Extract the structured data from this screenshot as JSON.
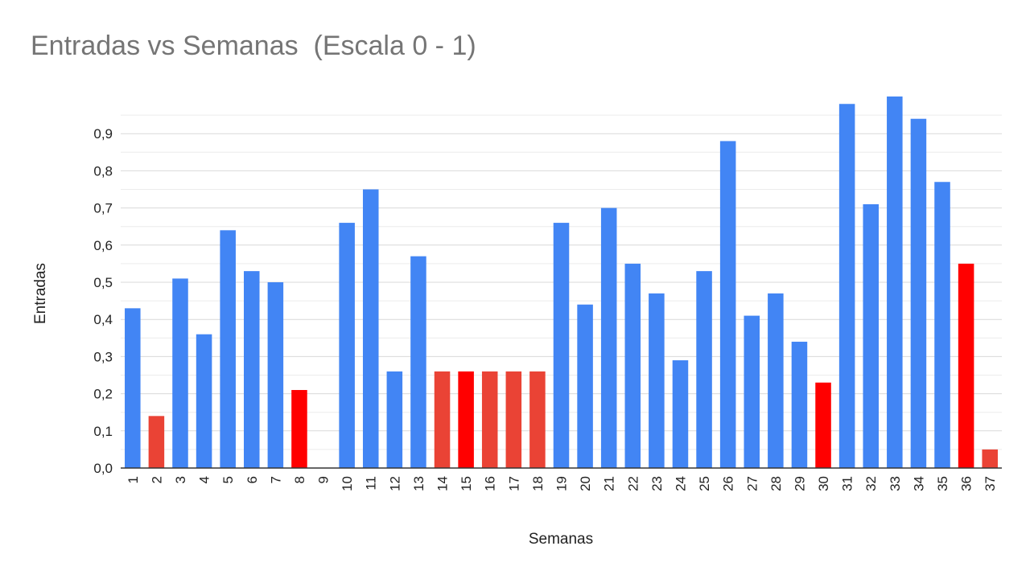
{
  "chart_data": {
    "type": "bar",
    "title": "Entradas vs Semanas  (Escala 0 - 1)",
    "xlabel": "Semanas",
    "ylabel": "Entradas",
    "ylim": [
      0,
      1
    ],
    "grid": true,
    "legend": "none",
    "categories": [
      "1",
      "2",
      "3",
      "4",
      "5",
      "6",
      "7",
      "8",
      "9",
      "10",
      "11",
      "12",
      "13",
      "14",
      "15",
      "16",
      "17",
      "18",
      "19",
      "20",
      "21",
      "22",
      "23",
      "24",
      "25",
      "26",
      "27",
      "28",
      "29",
      "30",
      "31",
      "32",
      "33",
      "34",
      "35",
      "36",
      "37"
    ],
    "values": [
      0.43,
      0.14,
      0.51,
      0.36,
      0.64,
      0.53,
      0.5,
      0.21,
      0.0,
      0.66,
      0.75,
      0.26,
      0.57,
      0.26,
      0.26,
      0.26,
      0.26,
      0.26,
      0.66,
      0.44,
      0.7,
      0.55,
      0.47,
      0.29,
      0.53,
      0.88,
      0.41,
      0.47,
      0.34,
      0.23,
      0.98,
      0.71,
      1.0,
      0.94,
      0.77,
      0.55,
      0.05
    ],
    "bar_colors": [
      "#4285F4",
      "#EA4335",
      "#4285F4",
      "#4285F4",
      "#4285F4",
      "#4285F4",
      "#4285F4",
      "#FF0000",
      "#4285F4",
      "#4285F4",
      "#4285F4",
      "#4285F4",
      "#4285F4",
      "#EA4335",
      "#FF0000",
      "#EA4335",
      "#EA4335",
      "#EA4335",
      "#4285F4",
      "#4285F4",
      "#4285F4",
      "#4285F4",
      "#4285F4",
      "#4285F4",
      "#4285F4",
      "#4285F4",
      "#4285F4",
      "#4285F4",
      "#4285F4",
      "#FF0000",
      "#4285F4",
      "#4285F4",
      "#4285F4",
      "#4285F4",
      "#4285F4",
      "#FF0000",
      "#EA4335"
    ],
    "y_ticks": [
      "0,0",
      "0,1",
      "0,2",
      "0,3",
      "0,4",
      "0,5",
      "0,6",
      "0,7",
      "0,8",
      "0,9"
    ]
  }
}
